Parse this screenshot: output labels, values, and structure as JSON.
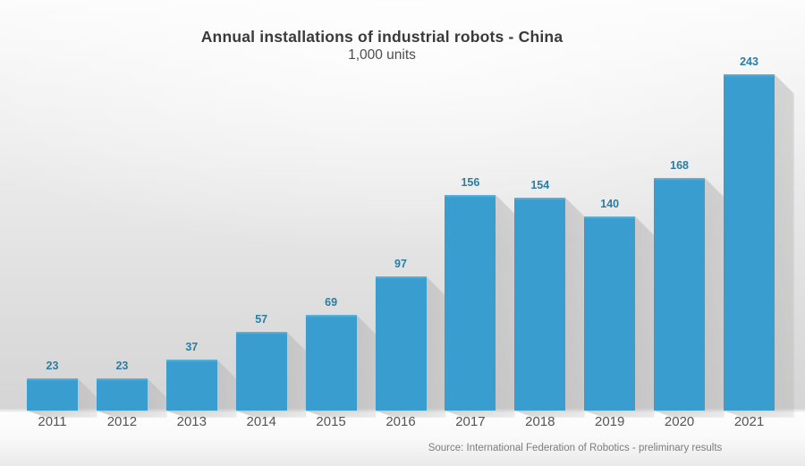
{
  "chart_data": {
    "type": "bar",
    "title": "Annual installations of industrial robots - China",
    "subtitle": "1,000 units",
    "categories": [
      "2011",
      "2012",
      "2013",
      "2014",
      "2015",
      "2016",
      "2017",
      "2018",
      "2019",
      "2020",
      "2021"
    ],
    "values": [
      23,
      23,
      37,
      57,
      69,
      97,
      156,
      154,
      140,
      168,
      243
    ],
    "value_labels": [
      "23",
      "23",
      "37",
      "57",
      "69",
      "97",
      "156",
      "154",
      "140",
      "168",
      "243"
    ],
    "source": "Source: International Federation of Robotics - preliminary results",
    "xlabel": "",
    "ylabel": "1,000 units",
    "ylim": [
      0,
      260
    ],
    "grid": false,
    "legend": "none",
    "axis_lines": "none",
    "bar_color": "#399ECF",
    "bar_top_highlight": "#64B6DC",
    "value_label_color": "#2B7DA1",
    "tick_label_color": "#555555",
    "title_color": "#3A3A3A",
    "source_color": "#7D7D7D"
  }
}
